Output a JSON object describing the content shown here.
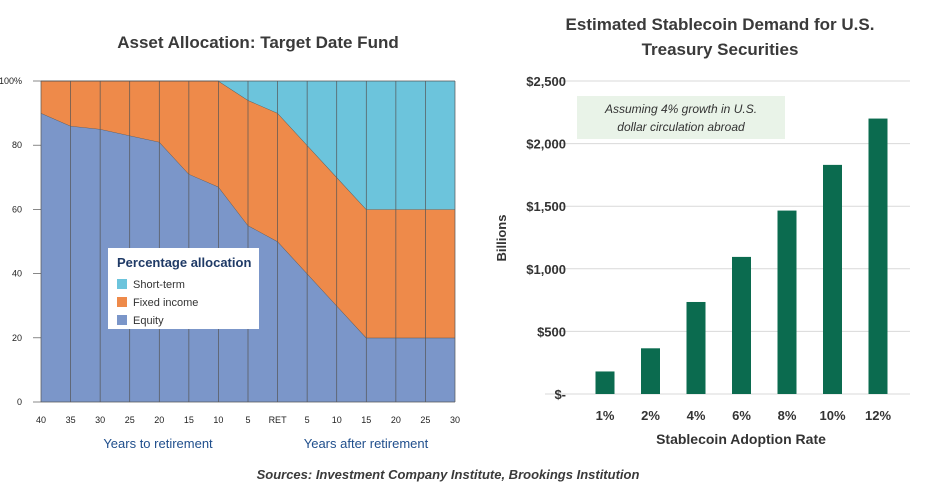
{
  "source": "Sources: Investment Company Institute, Brookings Institution",
  "chart_data": [
    {
      "type": "area",
      "title": "Asset Allocation: Target Date Fund",
      "x": [
        "40",
        "35",
        "30",
        "25",
        "20",
        "15",
        "10",
        "5",
        "RET",
        "5",
        "10",
        "15",
        "20",
        "25",
        "30"
      ],
      "x_group_labels": [
        "Years to retirement",
        "Years after retirement"
      ],
      "ylim": [
        0,
        100
      ],
      "yticks": [
        "0",
        "20",
        "40",
        "60",
        "80",
        "100%"
      ],
      "stacked": true,
      "grid": "vertical",
      "legend_title": "Percentage allocation",
      "legend_position": "center-left",
      "series": [
        {
          "name": "Equity",
          "color": "#7b96c9",
          "values": [
            90,
            86,
            85,
            83,
            81,
            71,
            67,
            55,
            50,
            40,
            30,
            20,
            20,
            20,
            20
          ]
        },
        {
          "name": "Fixed income",
          "color": "#ee8a4a",
          "values": [
            10,
            14,
            15,
            17,
            19,
            29,
            33,
            39,
            40,
            40,
            40,
            40,
            40,
            40,
            40
          ]
        },
        {
          "name": "Short-term",
          "color": "#6cc4dc",
          "values": [
            0,
            0,
            0,
            0,
            0,
            0,
            0,
            6,
            10,
            20,
            30,
            40,
            40,
            40,
            40
          ]
        }
      ]
    },
    {
      "type": "bar",
      "title": "Estimated Stablecoin Demand for U.S. Treasury Securities",
      "categories": [
        "1%",
        "2%",
        "4%",
        "6%",
        "8%",
        "10%",
        "12%"
      ],
      "values": [
        180,
        365,
        735,
        1095,
        1465,
        1830,
        2200
      ],
      "xlabel": "Stablecoin Adoption Rate",
      "ylabel": "Billions",
      "ylim": [
        0,
        2500
      ],
      "yticks": [
        "$-",
        "$500",
        "$1,000",
        "$1,500",
        "$2,000",
        "$2,500"
      ],
      "bar_color": "#0b6b4f",
      "grid": "horizontal",
      "annotation": "Assuming 4% growth in U.S. dollar circulation abroad"
    }
  ]
}
